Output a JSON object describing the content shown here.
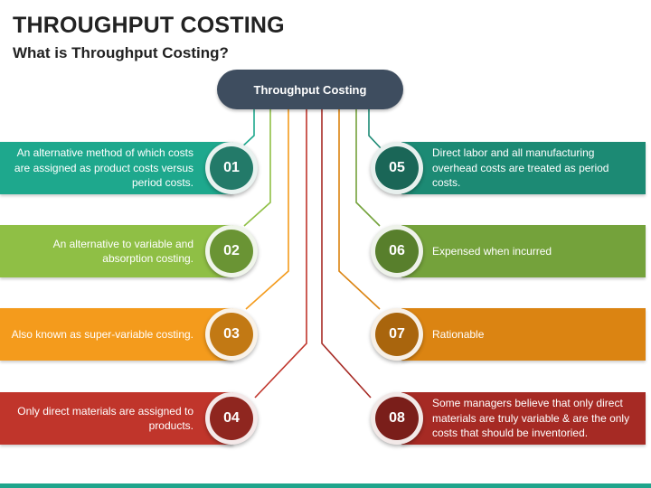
{
  "title": "THROUGHPUT COSTING",
  "subtitle": "What is Throughput Costing?",
  "center_label": "Throughput Costing",
  "items": [
    {
      "number": "01",
      "text": "An alternative method of which costs are assigned as product costs versus period costs.",
      "bar_color": "#1ea88d",
      "circle_color": "#237a69"
    },
    {
      "number": "02",
      "text": "An alternative to variable and absorption costing.",
      "bar_color": "#8fbf45",
      "circle_color": "#6a9434"
    },
    {
      "number": "03",
      "text": "Also known as super-variable costing.",
      "bar_color": "#f49b1c",
      "circle_color": "#c27914"
    },
    {
      "number": "04",
      "text": "Only direct materials are assigned to products.",
      "bar_color": "#c0352b",
      "circle_color": "#8f261f"
    },
    {
      "number": "05",
      "text": "Direct labor and all manufacturing overhead costs are treated as period costs.",
      "bar_color": "#1c8a74",
      "circle_color": "#1a6657"
    },
    {
      "number": "06",
      "text": "Expensed when incurred",
      "bar_color": "#74a23b",
      "circle_color": "#587f2c"
    },
    {
      "number": "07",
      "text": "Rationable",
      "bar_color": "#db8412",
      "circle_color": "#a9650d"
    },
    {
      "number": "08",
      "text": "Some managers believe that only direct materials are truly variable & are the only costs that should be inventoried.",
      "bar_color": "#a62a24",
      "circle_color": "#7a1e1a"
    }
  ]
}
